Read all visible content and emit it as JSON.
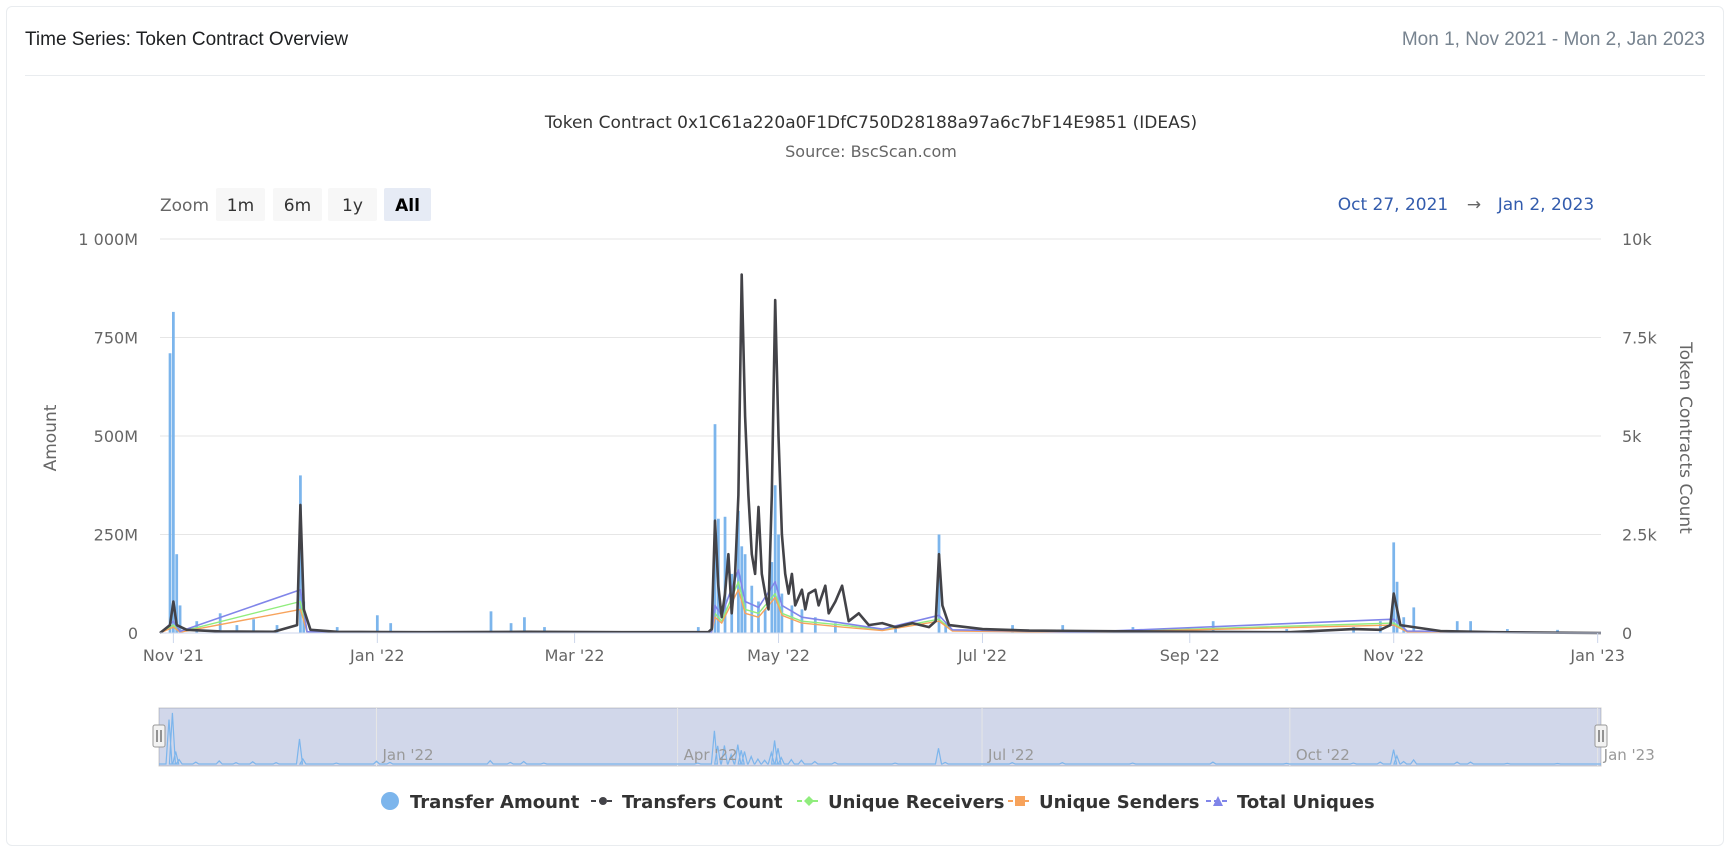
{
  "header": {
    "title": "Time Series: Token Contract Overview",
    "range": "Mon 1, Nov 2021 - Mon 2, Jan 2023"
  },
  "zoom": {
    "label": "Zoom",
    "buttons": [
      "1m",
      "6m",
      "1y",
      "All"
    ],
    "active": "All",
    "range_from": "Oct 27, 2021",
    "range_arrow": "→",
    "range_to": "Jan 2, 2023"
  },
  "navigator": {
    "labels": [
      "Jan '22",
      "Apr '22",
      "Jul '22",
      "Oct '22",
      "Jan '23"
    ]
  },
  "colors": {
    "transfer_amount": "#7cb5ec",
    "transfers_count": "#434348",
    "unique_receivers": "#90ed7d",
    "unique_senders": "#f7a35c",
    "total_uniques": "#8085e9"
  },
  "chart_data": {
    "type": "bar",
    "title": "Token Contract 0x1C61a220a0F1DfC750D28188a97a6c7bF14E9851 (IDEAS)",
    "subtitle": "Source: BscScan.com",
    "ylabel": "Amount",
    "y2label": "Token Contracts Count",
    "xlim": [
      "2021-10-28",
      "2023-01-02"
    ],
    "ylim": [
      0,
      1000000000
    ],
    "y2lim": [
      0,
      10000
    ],
    "x_ticks": [
      "Nov '21",
      "Jan '22",
      "Mar '22",
      "May '22",
      "Jul '22",
      "Sep '22",
      "Nov '22",
      "Jan '23"
    ],
    "y_ticks": [
      "0",
      "250M",
      "500M",
      "750M",
      "1 000M"
    ],
    "y2_ticks": [
      "0",
      "2.5k",
      "5k",
      "7.5k",
      "10k"
    ],
    "grid": true,
    "legend_position": "bottom",
    "series": [
      {
        "name": "Transfer Amount",
        "axis": "left",
        "kind": "column",
        "points": [
          [
            "2021-10-31",
            710000000
          ],
          [
            "2021-11-01",
            815000000
          ],
          [
            "2021-11-02",
            200000000
          ],
          [
            "2021-11-03",
            70000000
          ],
          [
            "2021-11-08",
            30000000
          ],
          [
            "2021-11-15",
            50000000
          ],
          [
            "2021-11-20",
            20000000
          ],
          [
            "2021-11-25",
            35000000
          ],
          [
            "2021-12-02",
            20000000
          ],
          [
            "2021-12-09",
            400000000
          ],
          [
            "2021-12-10",
            80000000
          ],
          [
            "2021-12-20",
            15000000
          ],
          [
            "2022-01-01",
            45000000
          ],
          [
            "2022-01-05",
            25000000
          ],
          [
            "2022-02-04",
            55000000
          ],
          [
            "2022-02-10",
            25000000
          ],
          [
            "2022-02-14",
            40000000
          ],
          [
            "2022-02-20",
            15000000
          ],
          [
            "2022-04-07",
            15000000
          ],
          [
            "2022-04-12",
            530000000
          ],
          [
            "2022-04-13",
            290000000
          ],
          [
            "2022-04-15",
            295000000
          ],
          [
            "2022-04-17",
            150000000
          ],
          [
            "2022-04-19",
            310000000
          ],
          [
            "2022-04-20",
            220000000
          ],
          [
            "2022-04-21",
            200000000
          ],
          [
            "2022-04-23",
            120000000
          ],
          [
            "2022-04-25",
            80000000
          ],
          [
            "2022-04-27",
            60000000
          ],
          [
            "2022-04-29",
            180000000
          ],
          [
            "2022-04-30",
            375000000
          ],
          [
            "2022-05-01",
            250000000
          ],
          [
            "2022-05-02",
            100000000
          ],
          [
            "2022-05-05",
            70000000
          ],
          [
            "2022-05-08",
            60000000
          ],
          [
            "2022-05-12",
            40000000
          ],
          [
            "2022-05-18",
            25000000
          ],
          [
            "2022-06-05",
            15000000
          ],
          [
            "2022-06-18",
            250000000
          ],
          [
            "2022-06-20",
            25000000
          ],
          [
            "2022-07-10",
            20000000
          ],
          [
            "2022-07-25",
            20000000
          ],
          [
            "2022-08-15",
            15000000
          ],
          [
            "2022-09-08",
            30000000
          ],
          [
            "2022-09-30",
            10000000
          ],
          [
            "2022-10-20",
            15000000
          ],
          [
            "2022-10-28",
            30000000
          ],
          [
            "2022-11-01",
            230000000
          ],
          [
            "2022-11-02",
            130000000
          ],
          [
            "2022-11-04",
            40000000
          ],
          [
            "2022-11-07",
            65000000
          ],
          [
            "2022-11-20",
            30000000
          ],
          [
            "2022-11-24",
            30000000
          ],
          [
            "2022-12-05",
            10000000
          ],
          [
            "2022-12-20",
            8000000
          ]
        ]
      },
      {
        "name": "Transfers Count",
        "axis": "right",
        "kind": "line",
        "points": [
          [
            "2021-10-28",
            0
          ],
          [
            "2021-10-31",
            200
          ],
          [
            "2021-11-01",
            800
          ],
          [
            "2021-11-02",
            200
          ],
          [
            "2021-11-05",
            80
          ],
          [
            "2021-11-15",
            40
          ],
          [
            "2021-12-01",
            30
          ],
          [
            "2021-12-08",
            200
          ],
          [
            "2021-12-09",
            3250
          ],
          [
            "2021-12-10",
            600
          ],
          [
            "2021-12-12",
            80
          ],
          [
            "2021-12-20",
            30
          ],
          [
            "2022-01-15",
            20
          ],
          [
            "2022-02-15",
            30
          ],
          [
            "2022-03-15",
            20
          ],
          [
            "2022-04-10",
            20
          ],
          [
            "2022-04-11",
            100
          ],
          [
            "2022-04-12",
            2850
          ],
          [
            "2022-04-13",
            1200
          ],
          [
            "2022-04-14",
            400
          ],
          [
            "2022-04-15",
            1000
          ],
          [
            "2022-04-16",
            2000
          ],
          [
            "2022-04-17",
            500
          ],
          [
            "2022-04-18",
            1500
          ],
          [
            "2022-04-19",
            3500
          ],
          [
            "2022-04-20",
            9100
          ],
          [
            "2022-04-21",
            5500
          ],
          [
            "2022-04-22",
            3500
          ],
          [
            "2022-04-23",
            2000
          ],
          [
            "2022-04-24",
            1500
          ],
          [
            "2022-04-25",
            3200
          ],
          [
            "2022-04-26",
            1500
          ],
          [
            "2022-04-27",
            1000
          ],
          [
            "2022-04-28",
            600
          ],
          [
            "2022-04-29",
            3500
          ],
          [
            "2022-04-30",
            8450
          ],
          [
            "2022-05-01",
            5000
          ],
          [
            "2022-05-02",
            2500
          ],
          [
            "2022-05-03",
            1500
          ],
          [
            "2022-05-04",
            1000
          ],
          [
            "2022-05-05",
            1500
          ],
          [
            "2022-05-06",
            700
          ],
          [
            "2022-05-08",
            1100
          ],
          [
            "2022-05-09",
            600
          ],
          [
            "2022-05-10",
            1000
          ],
          [
            "2022-05-12",
            1100
          ],
          [
            "2022-05-13",
            700
          ],
          [
            "2022-05-15",
            1200
          ],
          [
            "2022-05-16",
            500
          ],
          [
            "2022-05-18",
            800
          ],
          [
            "2022-05-20",
            1200
          ],
          [
            "2022-05-22",
            300
          ],
          [
            "2022-05-25",
            500
          ],
          [
            "2022-05-28",
            200
          ],
          [
            "2022-06-01",
            250
          ],
          [
            "2022-06-05",
            150
          ],
          [
            "2022-06-10",
            250
          ],
          [
            "2022-06-15",
            150
          ],
          [
            "2022-06-17",
            300
          ],
          [
            "2022-06-18",
            2000
          ],
          [
            "2022-06-19",
            700
          ],
          [
            "2022-06-21",
            200
          ],
          [
            "2022-07-01",
            100
          ],
          [
            "2022-07-15",
            60
          ],
          [
            "2022-08-01",
            50
          ],
          [
            "2022-09-01",
            30
          ],
          [
            "2022-10-01",
            20
          ],
          [
            "2022-10-20",
            100
          ],
          [
            "2022-10-28",
            80
          ],
          [
            "2022-10-31",
            200
          ],
          [
            "2022-11-01",
            1000
          ],
          [
            "2022-11-02",
            600
          ],
          [
            "2022-11-03",
            200
          ],
          [
            "2022-11-07",
            150
          ],
          [
            "2022-11-15",
            50
          ],
          [
            "2022-12-01",
            20
          ],
          [
            "2023-01-02",
            0
          ]
        ]
      },
      {
        "name": "Unique Receivers",
        "axis": "right",
        "kind": "line",
        "points": [
          [
            "2021-10-28",
            0
          ],
          [
            "2021-11-01",
            200
          ],
          [
            "2021-11-03",
            30
          ],
          [
            "2021-12-09",
            800
          ],
          [
            "2021-12-11",
            20
          ],
          [
            "2022-04-11",
            20
          ],
          [
            "2022-04-12",
            500
          ],
          [
            "2022-04-14",
            300
          ],
          [
            "2022-04-19",
            1300
          ],
          [
            "2022-04-21",
            600
          ],
          [
            "2022-04-25",
            500
          ],
          [
            "2022-04-30",
            1000
          ],
          [
            "2022-05-02",
            500
          ],
          [
            "2022-05-08",
            300
          ],
          [
            "2022-05-20",
            200
          ],
          [
            "2022-06-01",
            80
          ],
          [
            "2022-06-18",
            350
          ],
          [
            "2022-06-22",
            60
          ],
          [
            "2022-08-01",
            20
          ],
          [
            "2022-11-01",
            250
          ],
          [
            "2022-11-05",
            40
          ],
          [
            "2023-01-02",
            0
          ]
        ]
      },
      {
        "name": "Unique Senders",
        "axis": "right",
        "kind": "line",
        "points": [
          [
            "2021-10-28",
            0
          ],
          [
            "2021-11-01",
            150
          ],
          [
            "2021-11-03",
            20
          ],
          [
            "2021-12-09",
            600
          ],
          [
            "2021-12-11",
            15
          ],
          [
            "2022-04-11",
            15
          ],
          [
            "2022-04-12",
            400
          ],
          [
            "2022-04-14",
            250
          ],
          [
            "2022-04-19",
            1100
          ],
          [
            "2022-04-21",
            500
          ],
          [
            "2022-04-25",
            400
          ],
          [
            "2022-04-30",
            900
          ],
          [
            "2022-05-02",
            450
          ],
          [
            "2022-05-08",
            250
          ],
          [
            "2022-05-20",
            150
          ],
          [
            "2022-06-01",
            60
          ],
          [
            "2022-06-18",
            300
          ],
          [
            "2022-06-22",
            50
          ],
          [
            "2022-08-01",
            15
          ],
          [
            "2022-11-01",
            200
          ],
          [
            "2022-11-05",
            30
          ],
          [
            "2023-01-02",
            0
          ]
        ]
      },
      {
        "name": "Total Uniques",
        "axis": "right",
        "kind": "line",
        "points": [
          [
            "2021-10-28",
            0
          ],
          [
            "2021-11-01",
            300
          ],
          [
            "2021-11-03",
            40
          ],
          [
            "2021-12-09",
            1100
          ],
          [
            "2021-12-11",
            30
          ],
          [
            "2022-04-11",
            30
          ],
          [
            "2022-04-12",
            700
          ],
          [
            "2022-04-14",
            450
          ],
          [
            "2022-04-19",
            1600
          ],
          [
            "2022-04-21",
            800
          ],
          [
            "2022-04-25",
            650
          ],
          [
            "2022-04-30",
            1300
          ],
          [
            "2022-05-02",
            700
          ],
          [
            "2022-05-08",
            400
          ],
          [
            "2022-05-20",
            250
          ],
          [
            "2022-06-01",
            100
          ],
          [
            "2022-06-18",
            450
          ],
          [
            "2022-06-22",
            80
          ],
          [
            "2022-08-01",
            25
          ],
          [
            "2022-11-01",
            350
          ],
          [
            "2022-11-05",
            50
          ],
          [
            "2023-01-02",
            0
          ]
        ]
      }
    ]
  }
}
